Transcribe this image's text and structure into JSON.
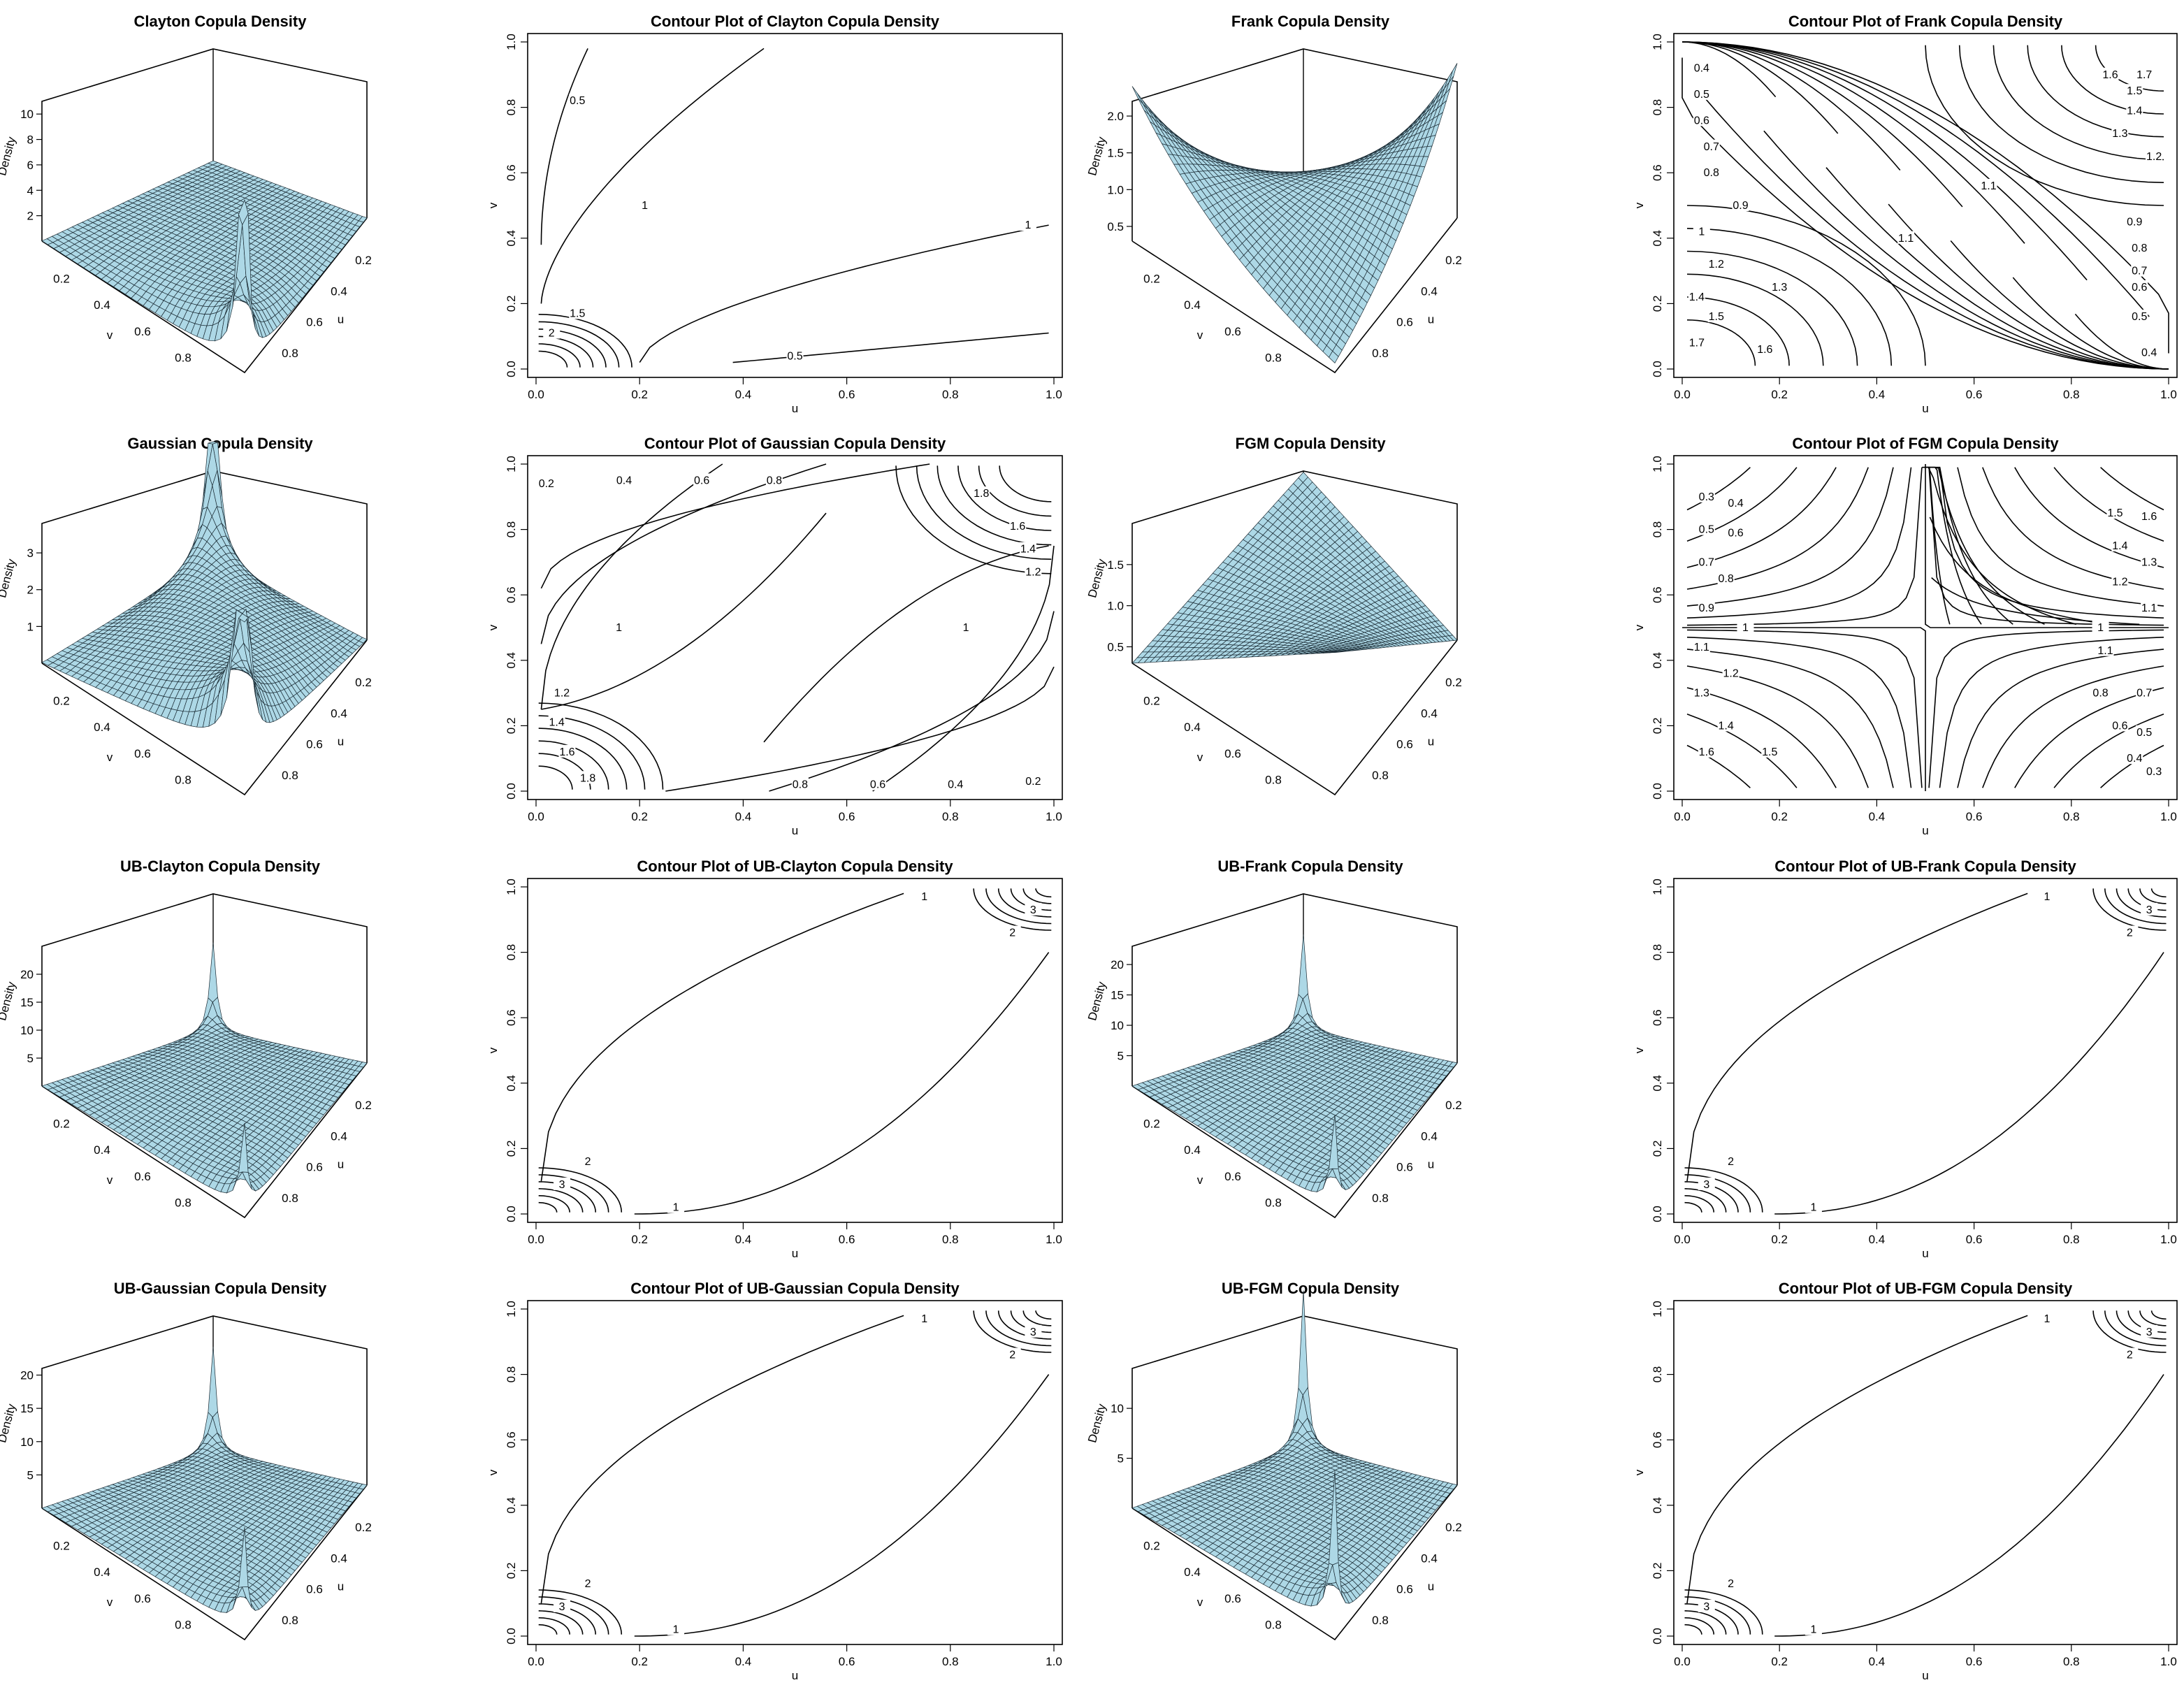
{
  "figure": {
    "panels": [
      {
        "kind": "persp",
        "title": "Clayton Copula Density",
        "zlabel": "Density",
        "zticks": [
          "2",
          "4",
          "6",
          "8",
          "10"
        ],
        "uticks": [
          "0.2",
          "0.4",
          "0.6",
          "0.8"
        ],
        "vticks": [
          "0.2",
          "0.4",
          "0.6",
          "0.8"
        ],
        "ulabel": "u",
        "vlabel": "v",
        "shape": "clayton",
        "zmax": 11,
        "spike_lower": false
      },
      {
        "kind": "contour",
        "title": "Contour Plot of Clayton Copula Density",
        "xlabel": "u",
        "ylabel": "v",
        "ticks": [
          "0.0",
          "0.2",
          "0.4",
          "0.6",
          "0.8",
          "1.0"
        ],
        "levels": [
          "0.5",
          "1",
          "1.5",
          "2"
        ],
        "family": "clayton"
      },
      {
        "kind": "persp",
        "title": "Frank Copula Density",
        "zlabel": "Density",
        "zticks": [
          "0.5",
          "1.0",
          "1.5",
          "2.0"
        ],
        "uticks": [
          "0.2",
          "0.4",
          "0.6",
          "0.8"
        ],
        "vticks": [
          "0.2",
          "0.4",
          "0.6",
          "0.8"
        ],
        "ulabel": "u",
        "vlabel": "v",
        "shape": "frank",
        "zmax": 2.2,
        "spike_lower": false
      },
      {
        "kind": "contour",
        "title": "Contour Plot of Frank Copula Density",
        "xlabel": "u",
        "ylabel": "v",
        "ticks": [
          "0.0",
          "0.2",
          "0.4",
          "0.6",
          "0.8",
          "1.0"
        ],
        "levels": [
          "0.4",
          "0.5",
          "0.6",
          "0.7",
          "0.8",
          "0.9",
          "1",
          "1.1",
          "1.2",
          "1.3",
          "1.4",
          "1.5",
          "1.6",
          "1.7"
        ],
        "family": "frank"
      },
      {
        "kind": "persp",
        "title": "Gaussian Copula Density",
        "zlabel": "Density",
        "zticks": [
          "1",
          "2",
          "3"
        ],
        "uticks": [
          "0.2",
          "0.4",
          "0.6",
          "0.8"
        ],
        "vticks": [
          "0.2",
          "0.4",
          "0.6",
          "0.8"
        ],
        "ulabel": "u",
        "vlabel": "v",
        "shape": "gauss",
        "zmax": 3.8,
        "spike_lower": true
      },
      {
        "kind": "contour",
        "title": "Contour Plot of Gaussian Copula Density",
        "xlabel": "u",
        "ylabel": "v",
        "ticks": [
          "0.0",
          "0.2",
          "0.4",
          "0.6",
          "0.8",
          "1.0"
        ],
        "levels": [
          "0.2",
          "0.4",
          "0.6",
          "0.8",
          "1",
          "1.2",
          "1.4",
          "1.6",
          "1.8"
        ],
        "family": "gauss"
      },
      {
        "kind": "persp",
        "title": "FGM Copula Density",
        "zlabel": "Density",
        "zticks": [
          "0.5",
          "1.0",
          "1.5"
        ],
        "uticks": [
          "0.2",
          "0.4",
          "0.6",
          "0.8"
        ],
        "vticks": [
          "0.2",
          "0.4",
          "0.6",
          "0.8"
        ],
        "ulabel": "u",
        "vlabel": "v",
        "shape": "fgm",
        "zmax": 2.0,
        "spike_lower": false
      },
      {
        "kind": "contour",
        "title": "Contour Plot of FGM Copula Density",
        "xlabel": "u",
        "ylabel": "v",
        "ticks": [
          "0.0",
          "0.2",
          "0.4",
          "0.6",
          "0.8",
          "1.0"
        ],
        "levels": [
          "0.3",
          "0.4",
          "0.5",
          "0.6",
          "0.7",
          "0.8",
          "0.9",
          "1",
          "1.1",
          "1.2",
          "1.3",
          "1.4",
          "1.5",
          "1.6"
        ],
        "family": "fgm"
      },
      {
        "kind": "persp",
        "title": "UB-Clayton Copula Density",
        "zlabel": "Density",
        "zticks": [
          "5",
          "10",
          "15",
          "20"
        ],
        "uticks": [
          "0.2",
          "0.4",
          "0.6",
          "0.8"
        ],
        "vticks": [
          "0.2",
          "0.4",
          "0.6",
          "0.8"
        ],
        "ulabel": "u",
        "vlabel": "v",
        "shape": "ub",
        "zmax": 25,
        "spike_lower": true
      },
      {
        "kind": "contour",
        "title": "Contour Plot of UB-Clayton Copula Density",
        "xlabel": "u",
        "ylabel": "v",
        "ticks": [
          "0.0",
          "0.2",
          "0.4",
          "0.6",
          "0.8",
          "1.0"
        ],
        "levels": [
          "1",
          "2",
          "3"
        ],
        "family": "ub"
      },
      {
        "kind": "persp",
        "title": "UB-Frank Copula Density",
        "zlabel": "Density",
        "zticks": [
          "5",
          "10",
          "15",
          "20"
        ],
        "uticks": [
          "0.2",
          "0.4",
          "0.6",
          "0.8"
        ],
        "vticks": [
          "0.2",
          "0.4",
          "0.6",
          "0.8"
        ],
        "ulabel": "u",
        "vlabel": "v",
        "shape": "ub",
        "zmax": 23,
        "spike_lower": true
      },
      {
        "kind": "contour",
        "title": "Contour Plot of UB-Frank Copula Density",
        "xlabel": "u",
        "ylabel": "v",
        "ticks": [
          "0.0",
          "0.2",
          "0.4",
          "0.6",
          "0.8",
          "1.0"
        ],
        "levels": [
          "1",
          "2",
          "3"
        ],
        "family": "ub"
      },
      {
        "kind": "persp",
        "title": "UB-Gaussian Copula Density",
        "zlabel": "Density",
        "zticks": [
          "5",
          "10",
          "15",
          "20"
        ],
        "uticks": [
          "0.2",
          "0.4",
          "0.6",
          "0.8"
        ],
        "vticks": [
          "0.2",
          "0.4",
          "0.6",
          "0.8"
        ],
        "ulabel": "u",
        "vlabel": "v",
        "shape": "ub",
        "zmax": 21,
        "spike_lower": true
      },
      {
        "kind": "contour",
        "title": "Contour Plot of UB-Gaussian Copula Density",
        "xlabel": "u",
        "ylabel": "v",
        "ticks": [
          "0.0",
          "0.2",
          "0.4",
          "0.6",
          "0.8",
          "1.0"
        ],
        "levels": [
          "1",
          "2",
          "3"
        ],
        "family": "ub"
      },
      {
        "kind": "persp",
        "title": "UB-FGM Copula Density",
        "zlabel": "Density",
        "zticks": [
          "5",
          "10"
        ],
        "uticks": [
          "0.2",
          "0.4",
          "0.6",
          "0.8"
        ],
        "vticks": [
          "0.2",
          "0.4",
          "0.6",
          "0.8"
        ],
        "ulabel": "u",
        "vlabel": "v",
        "shape": "ub",
        "zmax": 14,
        "spike_lower": true
      },
      {
        "kind": "contour",
        "title": "Contour Plot of UB-FGM Copula Density",
        "xlabel": "u",
        "ylabel": "v",
        "ticks": [
          "0.0",
          "0.2",
          "0.4",
          "0.6",
          "0.8",
          "1.0"
        ],
        "levels": [
          "1",
          "2",
          "3"
        ],
        "family": "ub"
      }
    ],
    "surface_color": "#add8e6",
    "line_color": "#000000"
  },
  "chart_data": [
    {
      "type": "surface",
      "title": "Clayton Copula Density",
      "xlabel": "u",
      "ylabel": "v",
      "zlabel": "Density",
      "xlim": [
        0,
        1
      ],
      "ylim": [
        0,
        1
      ],
      "zlim": [
        0,
        11
      ],
      "z_ticks": [
        2,
        4,
        6,
        8,
        10
      ]
    },
    {
      "type": "contour",
      "title": "Contour Plot of Clayton Copula Density",
      "xlabel": "u",
      "ylabel": "v",
      "xlim": [
        0,
        1
      ],
      "ylim": [
        0,
        1
      ],
      "levels": [
        0.5,
        1,
        1.5,
        2
      ]
    },
    {
      "type": "surface",
      "title": "Frank Copula Density",
      "xlabel": "u",
      "ylabel": "v",
      "zlabel": "Density",
      "xlim": [
        0,
        1
      ],
      "ylim": [
        0,
        1
      ],
      "zlim": [
        0.3,
        2.2
      ],
      "z_ticks": [
        0.5,
        1.0,
        1.5,
        2.0
      ]
    },
    {
      "type": "contour",
      "title": "Contour Plot of Frank Copula Density",
      "xlabel": "u",
      "ylabel": "v",
      "xlim": [
        0,
        1
      ],
      "ylim": [
        0,
        1
      ],
      "levels": [
        0.4,
        0.5,
        0.6,
        0.7,
        0.8,
        0.9,
        1,
        1.1,
        1.2,
        1.3,
        1.4,
        1.5,
        1.6,
        1.7
      ]
    },
    {
      "type": "surface",
      "title": "Gaussian Copula Density",
      "xlabel": "u",
      "ylabel": "v",
      "zlabel": "Density",
      "xlim": [
        0,
        1
      ],
      "ylim": [
        0,
        1
      ],
      "zlim": [
        0,
        3.8
      ],
      "z_ticks": [
        1,
        2,
        3
      ]
    },
    {
      "type": "contour",
      "title": "Contour Plot of Gaussian Copula Density",
      "xlabel": "u",
      "ylabel": "v",
      "xlim": [
        0,
        1
      ],
      "ylim": [
        0,
        1
      ],
      "levels": [
        0.2,
        0.4,
        0.6,
        0.8,
        1,
        1.2,
        1.4,
        1.6,
        1.8
      ]
    },
    {
      "type": "surface",
      "title": "FGM Copula Density",
      "xlabel": "u",
      "ylabel": "v",
      "zlabel": "Density",
      "xlim": [
        0,
        1
      ],
      "ylim": [
        0,
        1
      ],
      "zlim": [
        0.3,
        2.0
      ],
      "z_ticks": [
        0.5,
        1.0,
        1.5
      ]
    },
    {
      "type": "contour",
      "title": "Contour Plot of FGM Copula Density",
      "xlabel": "u",
      "ylabel": "v",
      "xlim": [
        0,
        1
      ],
      "ylim": [
        0,
        1
      ],
      "levels": [
        0.3,
        0.4,
        0.5,
        0.6,
        0.7,
        0.8,
        0.9,
        1,
        1.1,
        1.2,
        1.3,
        1.4,
        1.5,
        1.6
      ]
    },
    {
      "type": "surface",
      "title": "UB-Clayton Copula Density",
      "xlabel": "u",
      "ylabel": "v",
      "zlabel": "Density",
      "xlim": [
        0,
        1
      ],
      "ylim": [
        0,
        1
      ],
      "zlim": [
        0,
        25
      ],
      "z_ticks": [
        5,
        10,
        15,
        20
      ]
    },
    {
      "type": "contour",
      "title": "Contour Plot of UB-Clayton Copula Density",
      "xlabel": "u",
      "ylabel": "v",
      "xlim": [
        0,
        1
      ],
      "ylim": [
        0,
        1
      ],
      "levels": [
        1,
        2,
        3
      ]
    },
    {
      "type": "surface",
      "title": "UB-Frank Copula Density",
      "xlabel": "u",
      "ylabel": "v",
      "zlabel": "Density",
      "xlim": [
        0,
        1
      ],
      "ylim": [
        0,
        1
      ],
      "zlim": [
        0,
        23
      ],
      "z_ticks": [
        5,
        10,
        15,
        20
      ]
    },
    {
      "type": "contour",
      "title": "Contour Plot of UB-Frank Copula Density",
      "xlabel": "u",
      "ylabel": "v",
      "xlim": [
        0,
        1
      ],
      "ylim": [
        0,
        1
      ],
      "levels": [
        1,
        2,
        3
      ]
    },
    {
      "type": "surface",
      "title": "UB-Gaussian Copula Density",
      "xlabel": "u",
      "ylabel": "v",
      "zlabel": "Density",
      "xlim": [
        0,
        1
      ],
      "ylim": [
        0,
        1
      ],
      "zlim": [
        0,
        21
      ],
      "z_ticks": [
        5,
        10,
        15,
        20
      ]
    },
    {
      "type": "contour",
      "title": "Contour Plot of UB-Gaussian Copula Density",
      "xlabel": "u",
      "ylabel": "v",
      "xlim": [
        0,
        1
      ],
      "ylim": [
        0,
        1
      ],
      "levels": [
        1,
        2,
        3
      ]
    },
    {
      "type": "surface",
      "title": "UB-FGM Copula Density",
      "xlabel": "u",
      "ylabel": "v",
      "zlabel": "Density",
      "xlim": [
        0,
        1
      ],
      "ylim": [
        0,
        1
      ],
      "zlim": [
        0,
        14
      ],
      "z_ticks": [
        5,
        10
      ]
    },
    {
      "type": "contour",
      "title": "Contour Plot of UB-FGM Copula Density",
      "xlabel": "u",
      "ylabel": "v",
      "xlim": [
        0,
        1
      ],
      "ylim": [
        0,
        1
      ],
      "levels": [
        1,
        2,
        3
      ]
    }
  ]
}
